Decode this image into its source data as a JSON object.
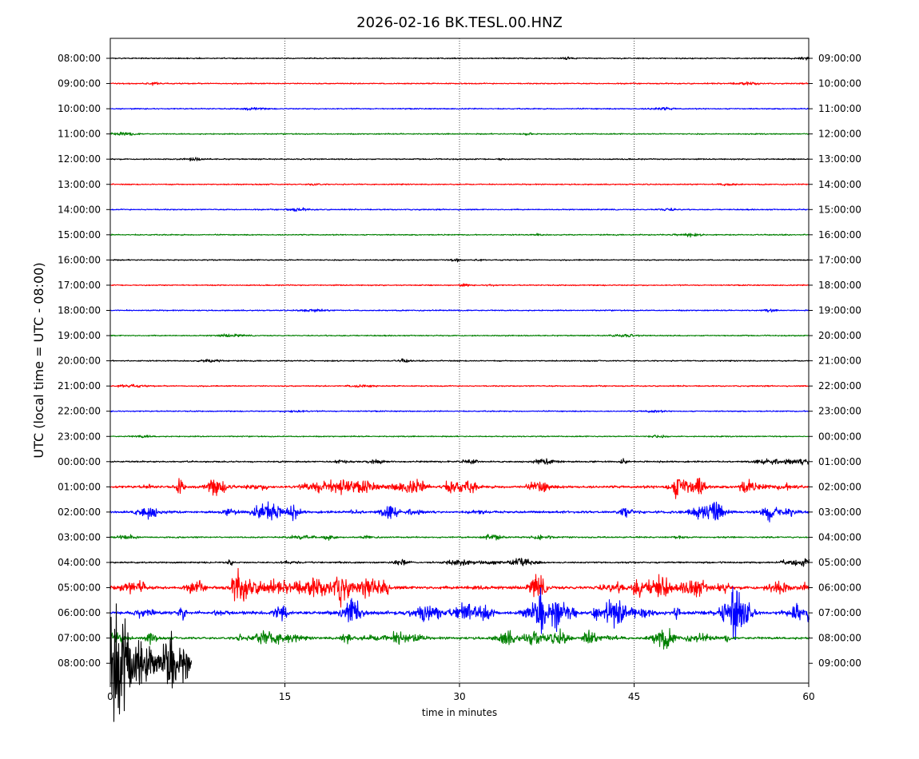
{
  "chart_data": {
    "type": "line",
    "title": "2026-02-16 BK.TESL.00.HNZ",
    "xlabel": "time in minutes",
    "ylabel": "UTC (local time = UTC - 08:00)",
    "xlim": [
      0,
      60
    ],
    "x_ticks": [
      "0",
      "15",
      "30",
      "45",
      "60"
    ],
    "x_tick_values": [
      0,
      15,
      30,
      45,
      60
    ],
    "vertical_grid": "dotted at 15, 30, 45",
    "trace_colors": [
      "#000000",
      "#ff0000",
      "#0000ff",
      "#008000"
    ],
    "left_labels": [
      "08:00:00",
      "09:00:00",
      "10:00:00",
      "11:00:00",
      "12:00:00",
      "13:00:00",
      "14:00:00",
      "15:00:00",
      "16:00:00",
      "17:00:00",
      "18:00:00",
      "19:00:00",
      "20:00:00",
      "21:00:00",
      "22:00:00",
      "23:00:00",
      "00:00:00",
      "01:00:00",
      "02:00:00",
      "03:00:00",
      "04:00:00",
      "05:00:00",
      "06:00:00",
      "07:00:00",
      "08:00:00"
    ],
    "right_labels": [
      "09:00:00",
      "10:00:00",
      "11:00:00",
      "12:00:00",
      "13:00:00",
      "14:00:00",
      "15:00:00",
      "16:00:00",
      "17:00:00",
      "18:00:00",
      "19:00:00",
      "20:00:00",
      "21:00:00",
      "22:00:00",
      "23:00:00",
      "00:00:00",
      "01:00:00",
      "02:00:00",
      "03:00:00",
      "04:00:00",
      "05:00:00",
      "06:00:00",
      "07:00:00",
      "08:00:00",
      "09:00:00"
    ],
    "series": [
      {
        "label": "08:00:00",
        "color": "#000000",
        "activity": 0.02,
        "end_minute": 60
      },
      {
        "label": "09:00:00",
        "color": "#ff0000",
        "activity": 0.02,
        "end_minute": 60
      },
      {
        "label": "10:00:00",
        "color": "#0000ff",
        "activity": 0.02,
        "end_minute": 60
      },
      {
        "label": "11:00:00",
        "color": "#008000",
        "activity": 0.02,
        "end_minute": 60
      },
      {
        "label": "12:00:00",
        "color": "#000000",
        "activity": 0.02,
        "end_minute": 60
      },
      {
        "label": "13:00:00",
        "color": "#ff0000",
        "activity": 0.02,
        "end_minute": 60
      },
      {
        "label": "14:00:00",
        "color": "#0000ff",
        "activity": 0.02,
        "end_minute": 60
      },
      {
        "label": "15:00:00",
        "color": "#008000",
        "activity": 0.02,
        "end_minute": 60
      },
      {
        "label": "16:00:00",
        "color": "#000000",
        "activity": 0.02,
        "end_minute": 60
      },
      {
        "label": "17:00:00",
        "color": "#ff0000",
        "activity": 0.02,
        "end_minute": 60
      },
      {
        "label": "18:00:00",
        "color": "#0000ff",
        "activity": 0.02,
        "end_minute": 60
      },
      {
        "label": "19:00:00",
        "color": "#008000",
        "activity": 0.02,
        "end_minute": 60
      },
      {
        "label": "20:00:00",
        "color": "#000000",
        "activity": 0.03,
        "end_minute": 60
      },
      {
        "label": "21:00:00",
        "color": "#ff0000",
        "activity": 0.03,
        "end_minute": 60
      },
      {
        "label": "22:00:00",
        "color": "#0000ff",
        "activity": 0.02,
        "end_minute": 60
      },
      {
        "label": "23:00:00",
        "color": "#008000",
        "activity": 0.02,
        "end_minute": 60
      },
      {
        "label": "00:00:00",
        "color": "#000000",
        "activity": 0.15,
        "end_minute": 60
      },
      {
        "label": "01:00:00",
        "color": "#ff0000",
        "activity": 0.55,
        "end_minute": 60
      },
      {
        "label": "02:00:00",
        "color": "#0000ff",
        "activity": 0.45,
        "end_minute": 60
      },
      {
        "label": "03:00:00",
        "color": "#008000",
        "activity": 0.12,
        "end_minute": 60
      },
      {
        "label": "04:00:00",
        "color": "#000000",
        "activity": 0.18,
        "end_minute": 60
      },
      {
        "label": "05:00:00",
        "color": "#ff0000",
        "activity": 0.75,
        "end_minute": 60
      },
      {
        "label": "06:00:00",
        "color": "#0000ff",
        "activity": 0.8,
        "end_minute": 60
      },
      {
        "label": "07:00:00",
        "color": "#008000",
        "activity": 0.5,
        "end_minute": 60
      },
      {
        "label": "08:00:00",
        "color": "#000000",
        "activity": 0.7,
        "end_minute": 7
      }
    ]
  }
}
